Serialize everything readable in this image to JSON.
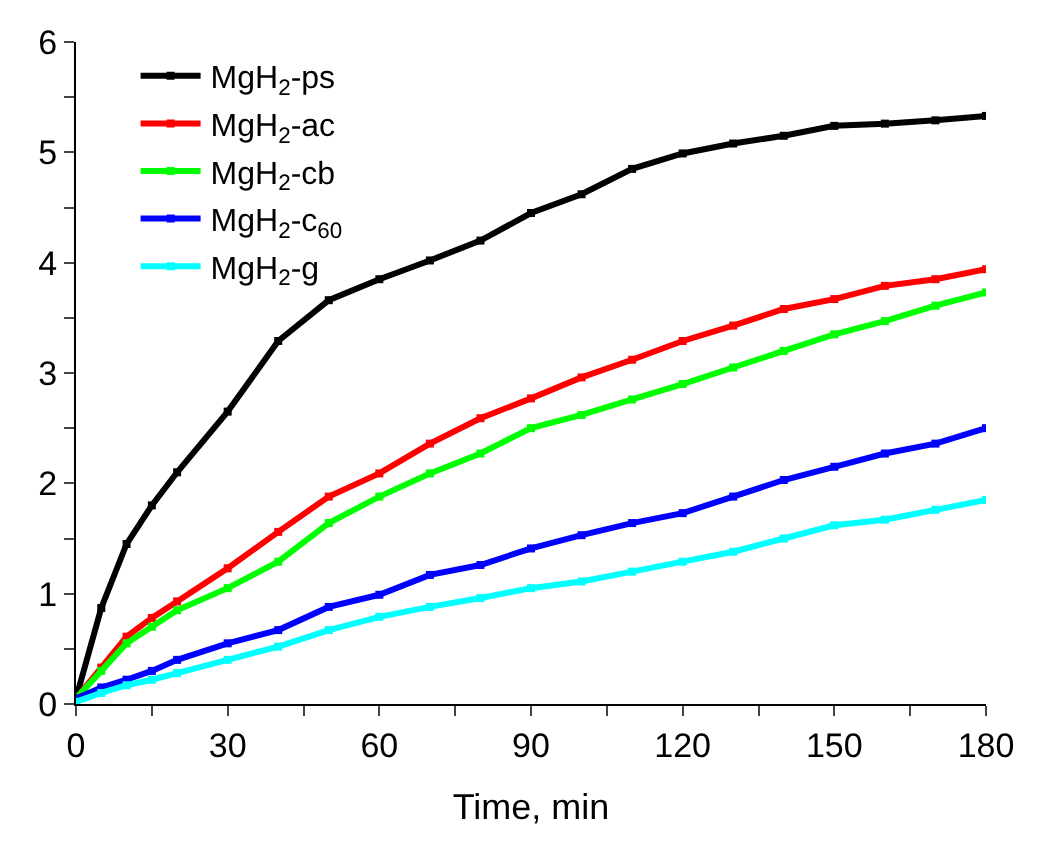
{
  "chart_data": {
    "type": "line",
    "xlabel": "Time, min",
    "x": [
      0,
      5,
      10,
      15,
      20,
      30,
      40,
      50,
      60,
      70,
      80,
      90,
      100,
      110,
      120,
      130,
      140,
      150,
      160,
      170,
      180
    ],
    "series": [
      {
        "name": "MgH$_{2}$-ps",
        "color": "#000000",
        "values": [
          0.05,
          0.87,
          1.45,
          1.8,
          2.1,
          2.65,
          3.29,
          3.66,
          3.85,
          4.02,
          4.2,
          4.45,
          4.62,
          4.85,
          4.99,
          5.08,
          5.15,
          5.24,
          5.26,
          5.29,
          5.33
        ]
      },
      {
        "name": "MgH$_{2}$-ac",
        "color": "#ff0000",
        "values": [
          0.05,
          0.33,
          0.61,
          0.78,
          0.93,
          1.23,
          1.56,
          1.88,
          2.09,
          2.36,
          2.59,
          2.77,
          2.96,
          3.12,
          3.29,
          3.43,
          3.58,
          3.67,
          3.79,
          3.85,
          3.94
        ]
      },
      {
        "name": "MgH$_{2}$-cb",
        "color": "#00ff00",
        "values": [
          0.05,
          0.3,
          0.55,
          0.7,
          0.85,
          1.05,
          1.29,
          1.64,
          1.88,
          2.09,
          2.27,
          2.5,
          2.62,
          2.76,
          2.9,
          3.05,
          3.2,
          3.35,
          3.47,
          3.61,
          3.73
        ]
      },
      {
        "name": "MgH$_{2}$-c$_{60}$",
        "color": "#0000ff",
        "values": [
          0.05,
          0.15,
          0.22,
          0.3,
          0.4,
          0.55,
          0.67,
          0.88,
          0.99,
          1.17,
          1.26,
          1.41,
          1.53,
          1.64,
          1.73,
          1.88,
          2.03,
          2.15,
          2.27,
          2.36,
          2.5
        ]
      },
      {
        "name": "MgH$_{2}$-g",
        "color": "#00ffff",
        "values": [
          0.02,
          0.1,
          0.17,
          0.22,
          0.28,
          0.4,
          0.52,
          0.67,
          0.79,
          0.88,
          0.96,
          1.05,
          1.11,
          1.2,
          1.29,
          1.38,
          1.5,
          1.62,
          1.67,
          1.76,
          1.85
        ]
      }
    ],
    "xlim": [
      0,
      180
    ],
    "xticks": [
      0,
      {
        "value": 15,
        "label": null
      },
      30,
      {
        "value": 45,
        "label": null
      },
      60,
      {
        "value": 75,
        "label": null
      },
      90,
      {
        "value": 105,
        "label": null
      },
      120,
      {
        "value": 135,
        "label": null
      },
      150,
      {
        "value": 165,
        "label": null
      },
      180
    ],
    "ylim": [
      0,
      6
    ],
    "yticks": [
      0,
      {
        "value": 0.5,
        "label": null
      },
      1,
      {
        "value": 1.5,
        "label": null
      },
      2,
      {
        "value": 2.5,
        "label": null
      },
      3,
      {
        "value": 3.5,
        "label": null
      },
      4,
      {
        "value": 4.5,
        "label": null
      },
      5,
      {
        "value": 5.5,
        "label": null
      },
      6
    ],
    "legend": "top left",
    "marker": "square",
    "line_style": "solid"
  }
}
